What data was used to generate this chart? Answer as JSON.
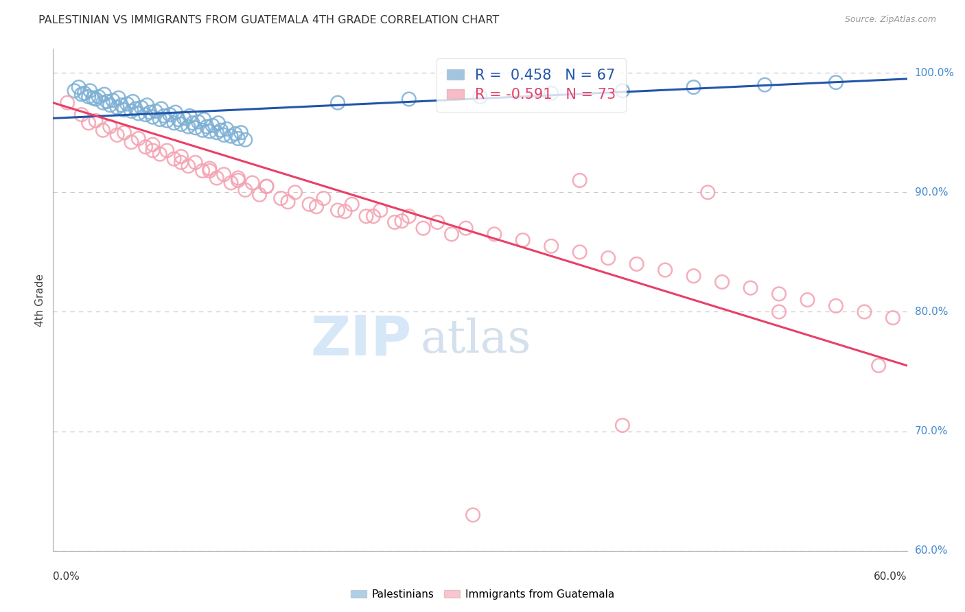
{
  "title": "PALESTINIAN VS IMMIGRANTS FROM GUATEMALA 4TH GRADE CORRELATION CHART",
  "source": "Source: ZipAtlas.com",
  "ylabel": "4th Grade",
  "xmin": 0.0,
  "xmax": 60.0,
  "ymin": 60.0,
  "ymax": 102.0,
  "yticks": [
    60.0,
    70.0,
    80.0,
    90.0,
    100.0
  ],
  "grid_color": "#c8c8d0",
  "blue_marker_color": "#7bafd4",
  "pink_marker_color": "#f4a0b0",
  "blue_line_color": "#2255aa",
  "pink_line_color": "#e84068",
  "r_blue": 0.458,
  "n_blue": 67,
  "r_pink": -0.591,
  "n_pink": 73,
  "watermark_zip": "ZIP",
  "watermark_atlas": "atlas",
  "watermark_color_zip": "#c8ddf0",
  "watermark_color_atlas": "#c0c8d8",
  "legend_label_blue": "Palestinians",
  "legend_label_pink": "Immigrants from Guatemala",
  "legend_text_color_blue": "#2255aa",
  "legend_text_color_pink": "#e84068",
  "axis_label_color": "#4488cc",
  "bottom_label_color": "#333333",
  "blue_points_x": [
    1.5,
    2.0,
    2.5,
    3.0,
    3.5,
    4.0,
    4.5,
    5.0,
    5.5,
    6.0,
    6.5,
    7.0,
    7.5,
    8.0,
    8.5,
    9.0,
    9.5,
    10.0,
    10.5,
    11.0,
    11.5,
    12.0,
    12.5,
    13.0,
    13.5,
    2.2,
    3.2,
    4.2,
    5.2,
    6.2,
    7.2,
    8.2,
    9.2,
    10.2,
    11.2,
    12.2,
    13.2,
    2.8,
    3.8,
    4.8,
    5.8,
    6.8,
    7.8,
    8.8,
    9.8,
    10.8,
    11.8,
    12.8,
    1.8,
    2.6,
    3.6,
    4.6,
    5.6,
    6.6,
    7.6,
    8.6,
    9.6,
    10.6,
    11.6,
    20.0,
    25.0,
    30.0,
    35.0,
    40.0,
    45.0,
    50.0,
    55.0
  ],
  "blue_points_y": [
    98.5,
    98.2,
    98.0,
    97.8,
    97.5,
    97.3,
    97.1,
    96.9,
    96.8,
    96.6,
    96.5,
    96.3,
    96.1,
    96.0,
    95.8,
    95.7,
    95.5,
    95.4,
    95.2,
    95.1,
    95.0,
    94.8,
    94.7,
    94.5,
    94.4,
    98.3,
    98.0,
    97.7,
    97.4,
    97.1,
    96.8,
    96.5,
    96.2,
    95.9,
    95.6,
    95.3,
    95.0,
    97.9,
    97.6,
    97.3,
    97.0,
    96.7,
    96.4,
    96.1,
    95.8,
    95.5,
    95.2,
    94.9,
    98.8,
    98.5,
    98.2,
    97.9,
    97.6,
    97.3,
    97.0,
    96.7,
    96.4,
    96.1,
    95.8,
    97.5,
    97.8,
    98.0,
    98.3,
    98.5,
    98.8,
    99.0,
    99.2
  ],
  "pink_points_x": [
    1.0,
    2.0,
    3.0,
    4.0,
    5.0,
    6.0,
    7.0,
    8.0,
    9.0,
    10.0,
    11.0,
    12.0,
    13.0,
    14.0,
    15.0,
    3.5,
    5.5,
    7.5,
    9.5,
    11.5,
    13.5,
    2.5,
    4.5,
    6.5,
    8.5,
    10.5,
    12.5,
    14.5,
    16.0,
    18.0,
    20.0,
    22.0,
    24.0,
    26.0,
    28.0,
    16.5,
    18.5,
    20.5,
    22.5,
    24.5,
    7.0,
    9.0,
    11.0,
    13.0,
    15.0,
    17.0,
    19.0,
    21.0,
    23.0,
    25.0,
    27.0,
    29.0,
    31.0,
    33.0,
    35.0,
    37.0,
    39.0,
    41.0,
    43.0,
    45.0,
    47.0,
    49.0,
    51.0,
    53.0,
    55.0,
    57.0,
    59.0,
    37.0,
    46.0,
    51.0,
    40.0,
    58.0,
    29.5
  ],
  "pink_points_y": [
    97.5,
    96.5,
    96.0,
    95.5,
    95.0,
    94.5,
    94.0,
    93.5,
    93.0,
    92.5,
    92.0,
    91.5,
    91.0,
    90.8,
    90.5,
    95.2,
    94.2,
    93.2,
    92.2,
    91.2,
    90.2,
    95.8,
    94.8,
    93.8,
    92.8,
    91.8,
    90.8,
    89.8,
    89.5,
    89.0,
    88.5,
    88.0,
    87.5,
    87.0,
    86.5,
    89.2,
    88.8,
    88.4,
    88.0,
    87.6,
    93.5,
    92.5,
    91.8,
    91.2,
    90.5,
    90.0,
    89.5,
    89.0,
    88.5,
    88.0,
    87.5,
    87.0,
    86.5,
    86.0,
    85.5,
    85.0,
    84.5,
    84.0,
    83.5,
    83.0,
    82.5,
    82.0,
    81.5,
    81.0,
    80.5,
    80.0,
    79.5,
    91.0,
    90.0,
    80.0,
    70.5,
    75.5,
    63.0
  ],
  "blue_trend_x": [
    0.0,
    60.0
  ],
  "blue_trend_y": [
    96.2,
    99.5
  ],
  "pink_trend_x": [
    0.0,
    60.0
  ],
  "pink_trend_y": [
    97.5,
    75.5
  ]
}
